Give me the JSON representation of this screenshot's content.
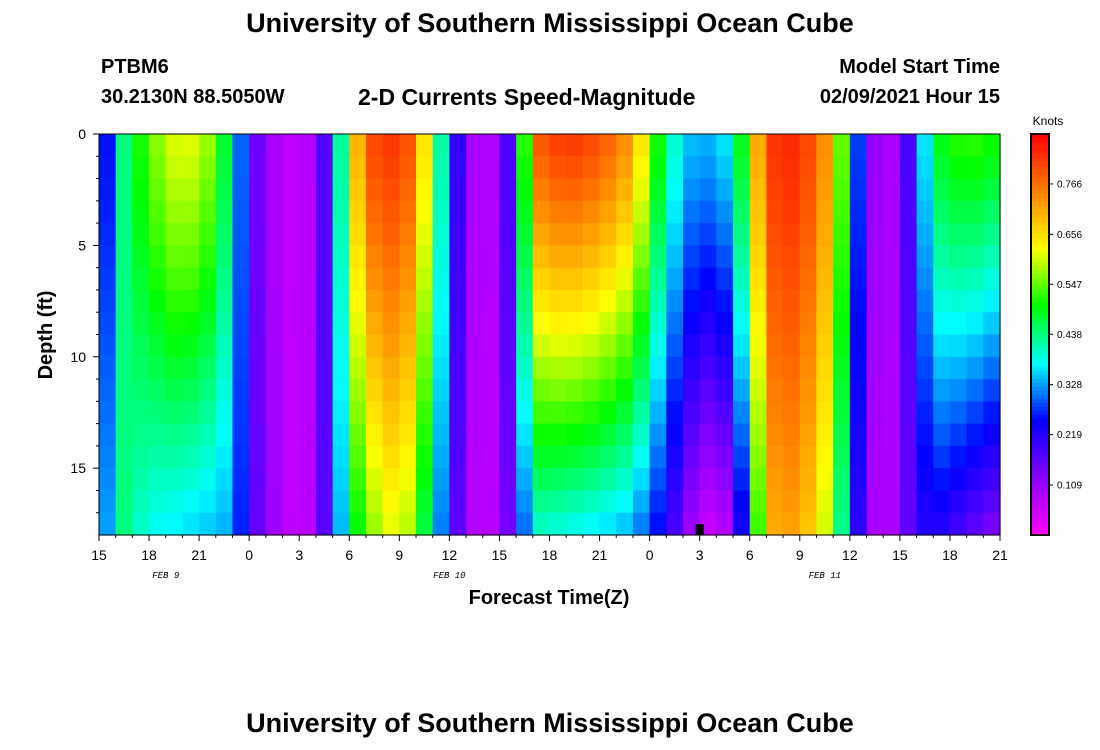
{
  "header": {
    "title": "University of Southern Mississippi Ocean Cube",
    "station_id": "PTBM6",
    "coordinates": "30.2130N 88.5050W",
    "product": "2-D Currents Speed-Magnitude",
    "model_start_label": "Model Start Time",
    "model_start_value": "02/09/2021 Hour 15"
  },
  "footer": {
    "title": "University of Southern Mississippi Ocean Cube"
  },
  "chart_data": {
    "type": "heatmap",
    "xlabel": "Forecast Time(Z)",
    "ylabel": "Depth (ft)",
    "x_ticks": [
      "15",
      "18",
      "21",
      "0",
      "3",
      "6",
      "9",
      "12",
      "15",
      "18",
      "21",
      "0",
      "3",
      "6",
      "9",
      "12",
      "15",
      "18",
      "21"
    ],
    "date_labels": [
      {
        "label": "FEB 9",
        "at_hour": 4
      },
      {
        "label": "FEB 10",
        "at_hour": 21
      },
      {
        "label": "FEB 11",
        "at_hour": 43.5
      }
    ],
    "x_range_hours": [
      0,
      54
    ],
    "y_ticks": [
      0,
      5,
      10,
      15
    ],
    "y_range_ft": [
      0,
      18
    ],
    "colorbar": {
      "label": "Knots",
      "ticks": [
        0.766,
        0.656,
        0.547,
        0.438,
        0.328,
        0.219,
        0.109
      ],
      "range": [
        0,
        0.875
      ],
      "colors": [
        "#ff00ff",
        "#8a00ff",
        "#0000ff",
        "#00ffff",
        "#00ff00",
        "#ffff00",
        "#ff7f00",
        "#ff0000"
      ]
    },
    "current_time_marker_hour": 36,
    "speed_knots": {
      "columns": 54,
      "rows": 18,
      "depth_profiles": [
        {
          "hour": 0,
          "surface": 0.11,
          "bottom": 0.2
        },
        {
          "hour": 1,
          "surface": 0.4,
          "bottom": 0.46
        },
        {
          "hour": 3,
          "surface": 0.55,
          "bottom": 0.38
        },
        {
          "hour": 5,
          "surface": 0.63,
          "bottom": 0.36
        },
        {
          "hour": 7,
          "surface": 0.56,
          "bottom": 0.34
        },
        {
          "hour": 8,
          "surface": 0.4,
          "bottom": 0.33
        },
        {
          "hour": 9,
          "surface": 0.2,
          "bottom": 0.2
        },
        {
          "hour": 10,
          "surface": 0.1,
          "bottom": 0.12
        },
        {
          "hour": 12,
          "surface": 0.06,
          "bottom": 0.05
        },
        {
          "hour": 13,
          "surface": 0.1,
          "bottom": 0.1
        },
        {
          "hour": 14,
          "surface": 0.25,
          "bottom": 0.24
        },
        {
          "hour": 15,
          "surface": 0.6,
          "bottom": 0.44
        },
        {
          "hour": 16,
          "surface": 0.8,
          "bottom": 0.55
        },
        {
          "hour": 18,
          "surface": 0.83,
          "bottom": 0.63
        },
        {
          "hour": 19,
          "surface": 0.76,
          "bottom": 0.54
        },
        {
          "hour": 20,
          "surface": 0.54,
          "bottom": 0.39
        },
        {
          "hour": 21,
          "surface": 0.3,
          "bottom": 0.23
        },
        {
          "hour": 22,
          "surface": 0.11,
          "bottom": 0.1
        },
        {
          "hour": 23,
          "surface": 0.07,
          "bottom": 0.06
        },
        {
          "hour": 24,
          "surface": 0.1,
          "bottom": 0.09
        },
        {
          "hour": 25,
          "surface": 0.26,
          "bottom": 0.2
        },
        {
          "hour": 26,
          "surface": 0.78,
          "bottom": 0.4
        },
        {
          "hour": 28,
          "surface": 0.83,
          "bottom": 0.38
        },
        {
          "hour": 30,
          "surface": 0.8,
          "bottom": 0.36
        },
        {
          "hour": 32,
          "surface": 0.72,
          "bottom": 0.33
        },
        {
          "hour": 34,
          "surface": 0.44,
          "bottom": 0.22
        },
        {
          "hour": 35,
          "surface": 0.36,
          "bottom": 0.14
        },
        {
          "hour": 36,
          "surface": 0.33,
          "bottom": 0.06
        },
        {
          "hour": 37,
          "surface": 0.35,
          "bottom": 0.05
        },
        {
          "hour": 38,
          "surface": 0.38,
          "bottom": 0.1
        },
        {
          "hour": 39,
          "surface": 0.6,
          "bottom": 0.35
        },
        {
          "hour": 40,
          "surface": 0.82,
          "bottom": 0.7
        },
        {
          "hour": 42,
          "surface": 0.84,
          "bottom": 0.72
        },
        {
          "hour": 44,
          "surface": 0.7,
          "bottom": 0.56
        },
        {
          "hour": 45,
          "surface": 0.4,
          "bottom": 0.3
        },
        {
          "hour": 46,
          "surface": 0.16,
          "bottom": 0.12
        },
        {
          "hour": 47,
          "surface": 0.06,
          "bottom": 0.06
        },
        {
          "hour": 48,
          "surface": 0.12,
          "bottom": 0.12
        },
        {
          "hour": 49,
          "surface": 0.25,
          "bottom": 0.2
        },
        {
          "hour": 50,
          "surface": 0.48,
          "bottom": 0.23
        },
        {
          "hour": 52,
          "surface": 0.53,
          "bottom": 0.17
        },
        {
          "hour": 54,
          "surface": 0.5,
          "bottom": 0.12
        }
      ]
    }
  }
}
